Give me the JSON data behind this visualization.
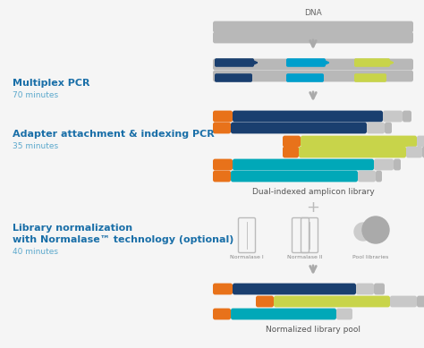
{
  "bg_color": "#f5f5f5",
  "colors": {
    "gray": "#b8b8b8",
    "dark_navy": "#1a3f6f",
    "cyan": "#009fcc",
    "lime": "#c8d44a",
    "orange": "#e8721a",
    "teal": "#00a8b8",
    "light_gray": "#c8c8c8",
    "med_gray": "#999999",
    "arrow_gray": "#aaaaaa"
  },
  "dna_label": "DNA",
  "label1": "Dual-indexed amplicon library",
  "label2": "Normalized library pool",
  "icon_label1": "Normalase I",
  "icon_label2": "Normalase II",
  "icon_label3": "Pool libraries",
  "step1_title": "Multiplex PCR",
  "step1_sub": "70 minutes",
  "step2_title": "Adapter attachment & indexing PCR",
  "step2_sub": "35 minutes",
  "step3_title1": "Library normalization",
  "step3_title2": "with Normalase™ technology (optional)",
  "step3_sub": "40 minutes",
  "title_color": "#1a6fa8",
  "sub_color": "#5ba8cc"
}
